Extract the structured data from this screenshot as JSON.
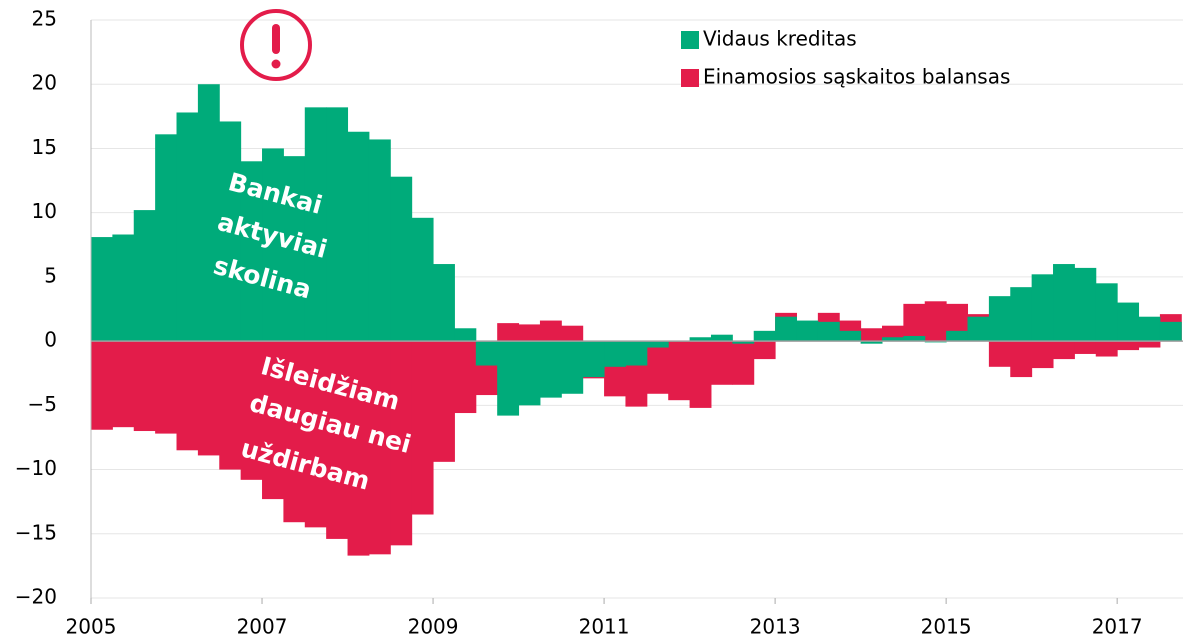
{
  "chart_data": {
    "type": "bar",
    "x": [
      2005,
      2005.25,
      2005.5,
      2005.75,
      2006,
      2006.25,
      2006.5,
      2006.75,
      2007,
      2007.25,
      2007.5,
      2007.75,
      2008,
      2008.25,
      2008.5,
      2008.75,
      2009,
      2009.25,
      2009.5,
      2009.75,
      2010,
      2010.25,
      2010.5,
      2010.75,
      2011,
      2011.25,
      2011.5,
      2011.75,
      2012,
      2012.25,
      2012.5,
      2012.75,
      2013,
      2013.25,
      2013.5,
      2013.75,
      2014,
      2014.25,
      2014.5,
      2014.75,
      2015,
      2015.25,
      2015.5,
      2015.75,
      2016,
      2016.25,
      2016.5,
      2016.75,
      2017,
      2017.25,
      2017.5
    ],
    "series": [
      {
        "name": "Vidaus kreditas",
        "color": "#00ab7a",
        "values": [
          8.1,
          8.3,
          10.2,
          16.1,
          17.8,
          20.0,
          17.1,
          14.0,
          15.0,
          14.4,
          18.2,
          18.2,
          16.3,
          15.7,
          12.8,
          9.6,
          6.0,
          1.0,
          -1.9,
          -5.8,
          -5.0,
          -4.4,
          -4.1,
          -2.8,
          -2.0,
          -1.9,
          -0.5,
          0.0,
          0.3,
          0.5,
          -0.2,
          0.8,
          1.9,
          1.6,
          1.5,
          0.8,
          -0.2,
          0.3,
          0.4,
          -0.1,
          0.8,
          1.9,
          3.5,
          4.2,
          5.2,
          6.0,
          5.7,
          4.5,
          3.0,
          1.9,
          1.5
        ]
      },
      {
        "name": "Einamosios sąskaitos balansas",
        "color": "#e31c4a",
        "values": [
          -6.9,
          -6.7,
          -7.0,
          -7.2,
          -8.5,
          -8.9,
          -10.0,
          -10.8,
          -12.3,
          -14.1,
          -14.5,
          -15.4,
          -16.7,
          -16.6,
          -15.9,
          -13.5,
          -9.4,
          -5.6,
          -4.2,
          1.4,
          1.3,
          1.6,
          1.2,
          -2.9,
          -4.3,
          -5.1,
          -4.1,
          -4.6,
          -5.2,
          -3.4,
          -3.4,
          -1.4,
          2.2,
          1.5,
          2.2,
          1.6,
          1.0,
          1.2,
          2.9,
          3.1,
          2.9,
          2.1,
          -2.0,
          -2.8,
          -2.1,
          -1.4,
          -1.0,
          -1.2,
          -0.7,
          -0.5,
          2.1
        ]
      }
    ],
    "bar_width": 0.25,
    "xlim": [
      2005,
      2017.77
    ],
    "xticks": [
      2005,
      2007,
      2009,
      2011,
      2013,
      2015,
      2017
    ],
    "ylim": [
      -20,
      25
    ],
    "yticks": [
      {
        "value": -20,
        "label": "−20"
      },
      {
        "value": -15,
        "label": "−15"
      },
      {
        "value": -10,
        "label": "−10"
      },
      {
        "value": -5,
        "label": "−5"
      },
      0,
      5,
      10,
      15,
      20,
      25
    ],
    "grid": true,
    "legend": "top-right",
    "annotations": [
      [
        "Bankai",
        "aktyviai",
        "skolina"
      ],
      [
        "Išleidžiam",
        "daugiau nei",
        "uždirbam"
      ]
    ]
  }
}
